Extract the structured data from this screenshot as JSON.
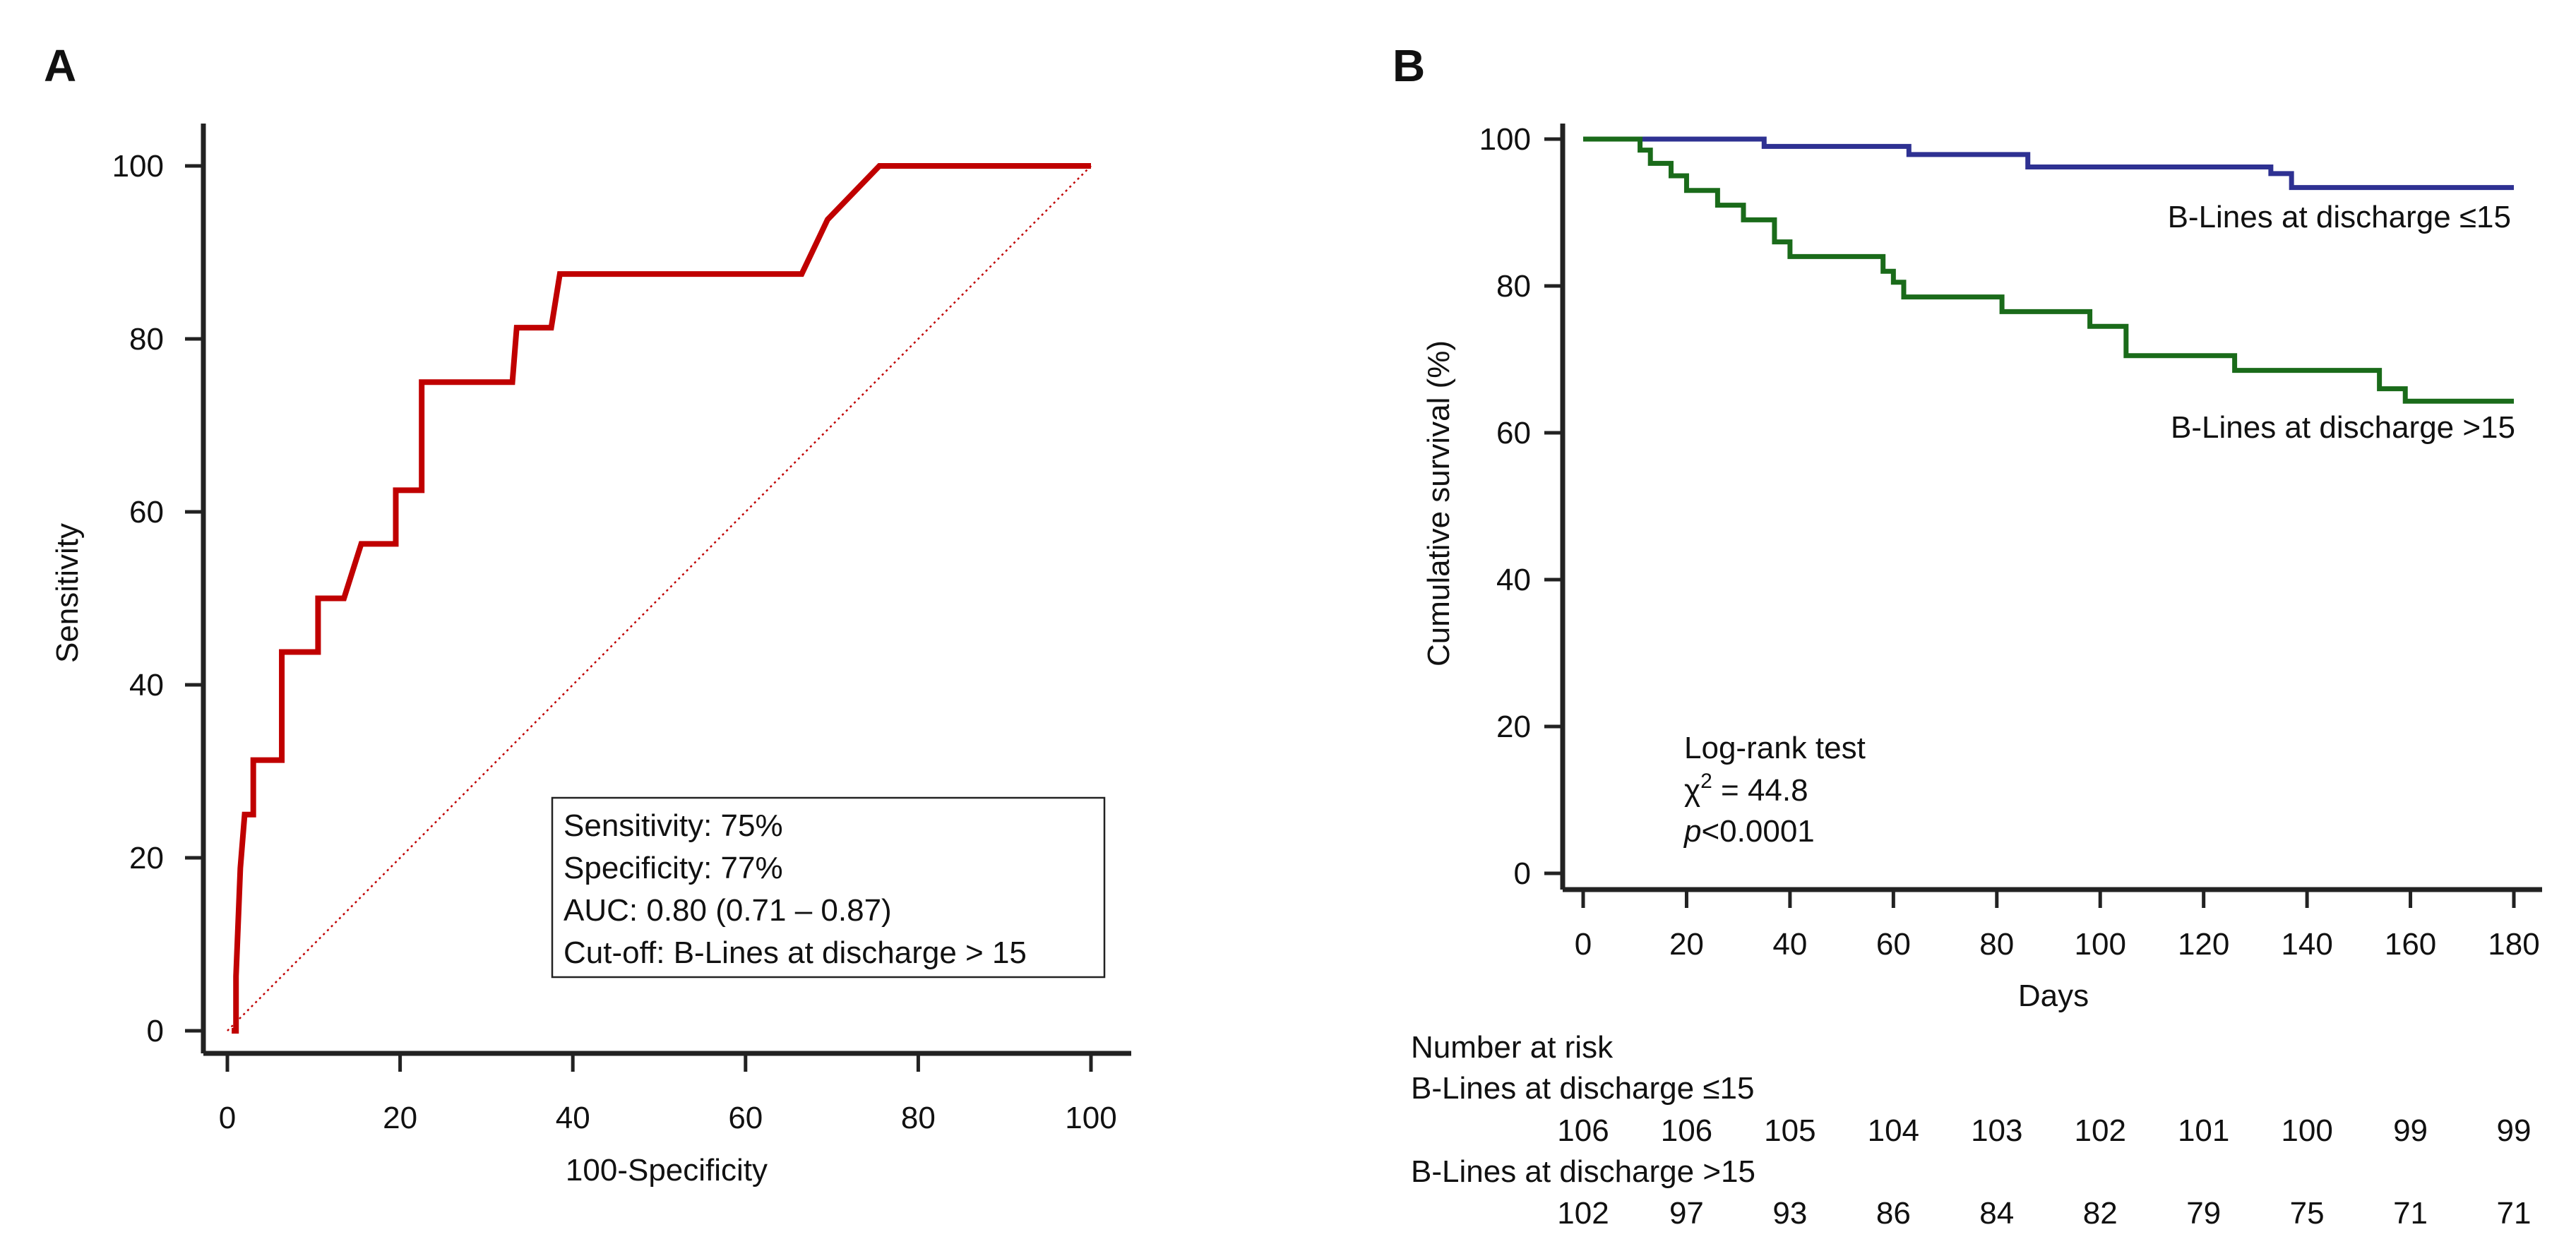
{
  "chart_data": [
    {
      "panel_label": "A",
      "type": "line",
      "title": "",
      "xlabel": "100-Specificity",
      "ylabel": "Sensitivity",
      "xlim": [
        0,
        100
      ],
      "ylim": [
        0,
        100
      ],
      "xticks": [
        "0",
        "20",
        "40",
        "60",
        "80",
        "100"
      ],
      "yticks": [
        "0",
        "20",
        "40",
        "60",
        "80",
        "100"
      ],
      "grid": false,
      "series": [
        {
          "name": "ROC curve",
          "color": "#c00000",
          "style": "solid",
          "x": [
            0.5,
            1.0,
            1.0,
            1.5,
            2.0,
            3.0,
            3.0,
            6.3,
            6.3,
            10.5,
            10.5,
            13.5,
            15.5,
            19.5,
            19.5,
            22.5,
            22.5,
            33,
            33.5,
            37.5,
            38.5,
            45,
            66.5,
            69.5,
            75.5,
            100
          ],
          "y": [
            0,
            0,
            6.3,
            18.8,
            25,
            25,
            31.3,
            31.3,
            43.8,
            43.8,
            50,
            50,
            56.3,
            56.3,
            62.5,
            62.5,
            75,
            75,
            81.3,
            81.3,
            87.5,
            87.5,
            87.5,
            93.8,
            100,
            100
          ]
        },
        {
          "name": "Reference line",
          "color": "#c00000",
          "style": "dotted",
          "x": [
            0,
            100
          ],
          "y": [
            0,
            100
          ]
        }
      ],
      "annotations": [
        "Sensitivity: 75%",
        "Specificity: 77%",
        "AUC: 0.80 (0.71 – 0.87)",
        "Cut-off: B-Lines at discharge > 15"
      ]
    },
    {
      "panel_label": "B",
      "type": "line",
      "title": "",
      "xlabel": "Days",
      "ylabel": "Cumulative survival (%)",
      "xlim": [
        0,
        180
      ],
      "ylim": [
        0,
        100
      ],
      "xticks": [
        "0",
        "20",
        "40",
        "60",
        "80",
        "100",
        "120",
        "140",
        "160",
        "180"
      ],
      "yticks": [
        "0",
        "20",
        "40",
        "60",
        "80",
        "100"
      ],
      "grid": false,
      "series": [
        {
          "name": "B-Lines at discharge ≤15",
          "color": "#2e3192",
          "x": [
            0,
            35,
            63,
            86,
            133,
            137,
            180
          ],
          "y": [
            100,
            99,
            97.9,
            96.2,
            95.3,
            93.4,
            93.4
          ]
        },
        {
          "name": "B-Lines at discharge >15",
          "color": "#1a6b1a",
          "x": [
            0,
            11,
            13,
            17,
            20,
            26,
            31,
            37,
            40,
            58,
            60,
            62,
            81,
            98,
            105,
            126,
            154,
            159,
            180
          ],
          "y": [
            100,
            98.5,
            96.7,
            95,
            93,
            91,
            89,
            86,
            84,
            82,
            80.5,
            78.5,
            76.5,
            74.5,
            70.5,
            68.5,
            66,
            64.3,
            64.3
          ]
        }
      ],
      "annotations": {
        "test_title": "Log-rank test",
        "chi_text": "χ",
        "chi_sup": "2",
        "chi_value": " = 44.8",
        "p_italic": "p",
        "p_value": "<0.0001"
      },
      "risk_table": {
        "title": "Number at risk",
        "groups": [
          {
            "label": "B-Lines at discharge ≤15",
            "values": [
              "106",
              "106",
              "105",
              "104",
              "103",
              "102",
              "101",
              "100",
              "99",
              "99"
            ]
          },
          {
            "label": "B-Lines at discharge >15",
            "values": [
              "102",
              "97",
              "93",
              "86",
              "84",
              "82",
              "79",
              "75",
              "71",
              "71"
            ]
          }
        ]
      }
    }
  ]
}
